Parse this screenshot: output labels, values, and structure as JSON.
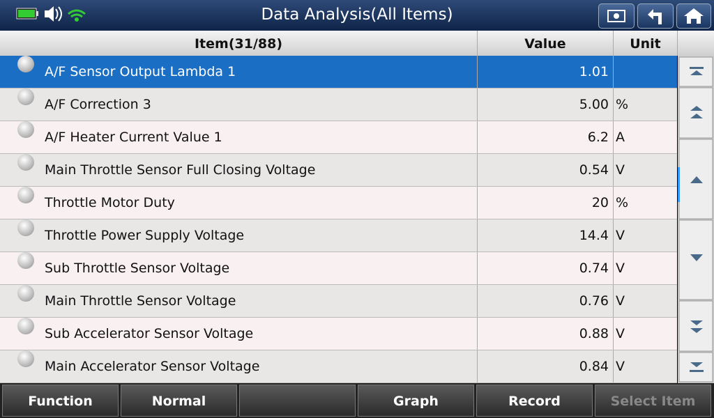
{
  "header": {
    "title": "Data Analysis(All Items)"
  },
  "table": {
    "columns": [
      "Item(31/88)",
      "Value",
      "Unit"
    ],
    "rows": [
      {
        "item": "A/F Sensor Output Lambda 1",
        "value": "1.01"
      },
      {
        "item": "A/F Correction 3",
        "value": "5.00",
        "unit": "%"
      },
      {
        "item": "A/F Heater Current Value 1",
        "value": "6.2",
        "unit": "A"
      },
      {
        "item": "Main Throttle Sensor Full Closing Voltage",
        "value": "0.54",
        "unit": "V"
      },
      {
        "item": "Throttle Motor Duty",
        "value": "20",
        "unit": "%"
      },
      {
        "item": "Throttle Power Supply Voltage",
        "value": "14.4",
        "unit": "V"
      },
      {
        "item": "Sub Throttle Sensor Voltage",
        "value": "0.74",
        "unit": "V"
      },
      {
        "item": "Main Throttle Sensor Voltage",
        "value": "0.76",
        "unit": "V"
      },
      {
        "item": "Sub Accelerator Sensor Voltage",
        "value": "0.88",
        "unit": "V"
      },
      {
        "item": "Main Accelerator Sensor Voltage",
        "value": "0.84",
        "unit": "V"
      }
    ]
  },
  "footer": {
    "buttons": [
      "Function",
      "Normal",
      "Graph",
      "Record",
      "Select Item"
    ]
  }
}
